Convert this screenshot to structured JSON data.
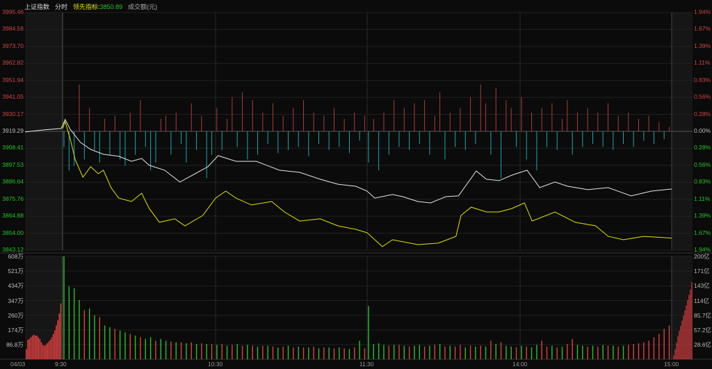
{
  "header": {
    "index_name": "上证指数",
    "mode": "分时",
    "indicator_label": "领先指标:",
    "indicator_value": "3850.89",
    "volume_label": "成交额(元)"
  },
  "icons": {
    "close": "close-icon",
    "expand": "expand-arrows-icon"
  },
  "colors": {
    "up": "#e04040",
    "down": "#27c427",
    "breadth_down": "#1aa8b0",
    "index_line": "#e8e8e8",
    "indicator_line": "#e6e600",
    "background": "#0b0b0b"
  },
  "chart_data": [
    {
      "type": "line",
      "panel": "price",
      "prev_close": 3919.29,
      "ylim": [
        3843.12,
        3995.46
      ],
      "left_ticks": [
        "3995.46",
        "3984.58",
        "3973.70",
        "3962.82",
        "3951.94",
        "3941.05",
        "3930.17",
        "3919.29",
        "3908.41",
        "3897.53",
        "3886.64",
        "3875.76",
        "3864.88",
        "3854.00",
        "3843.12"
      ],
      "right_ticks": [
        "1.94%",
        "1.67%",
        "1.39%",
        "1.11%",
        "0.83%",
        "0.56%",
        "0.28%",
        "0.00%",
        "0.28%",
        "0.56%",
        "0.83%",
        "1.11%",
        "1.39%",
        "1.67%",
        "1.94%"
      ],
      "x_ticks": [
        "04/03",
        "9:30",
        "10:30",
        "11:30",
        "14:00",
        "15:00"
      ],
      "series": [
        {
          "key": "index",
          "color": "#e8e8e8",
          "points": [
            [
              "09:15",
              3918.9
            ],
            [
              "09:20",
              3920.2
            ],
            [
              "09:25",
              3921.1
            ],
            [
              "09:31",
              3926.9
            ],
            [
              "09:33",
              3920.6
            ],
            [
              "09:37",
              3912.2
            ],
            [
              "09:41",
              3907.7
            ],
            [
              "09:46",
              3904.6
            ],
            [
              "09:52",
              3903.3
            ],
            [
              "09:57",
              3900.1
            ],
            [
              "10:01",
              3901.9
            ],
            [
              "10:04",
              3897.5
            ],
            [
              "10:10",
              3894.4
            ],
            [
              "10:16",
              3886.8
            ],
            [
              "10:22",
              3892.1
            ],
            [
              "10:27",
              3896.6
            ],
            [
              "10:31",
              3903.7
            ],
            [
              "10:38",
              3900.1
            ],
            [
              "10:46",
              3900.1
            ],
            [
              "10:55",
              3894.4
            ],
            [
              "11:03",
              3893.0
            ],
            [
              "11:11",
              3888.6
            ],
            [
              "11:18",
              3885.4
            ],
            [
              "11:25",
              3884.1
            ],
            [
              "13:00",
              3881.0
            ],
            [
              "13:03",
              3876.5
            ],
            [
              "13:10",
              3878.8
            ],
            [
              "13:14",
              3877.4
            ],
            [
              "13:20",
              3874.3
            ],
            [
              "13:25",
              3873.4
            ],
            [
              "13:31",
              3877.4
            ],
            [
              "13:36",
              3877.9
            ],
            [
              "13:43",
              3893.9
            ],
            [
              "13:47",
              3888.6
            ],
            [
              "13:52",
              3887.7
            ],
            [
              "13:57",
              3891.2
            ],
            [
              "14:03",
              3894.4
            ],
            [
              "14:08",
              3883.2
            ],
            [
              "14:14",
              3886.8
            ],
            [
              "14:19",
              3884.1
            ],
            [
              "14:27",
              3881.9
            ],
            [
              "14:35",
              3883.2
            ],
            [
              "14:44",
              3877.9
            ],
            [
              "14:52",
              3881.0
            ],
            [
              "15:00",
              3882.3
            ]
          ]
        },
        {
          "key": "indicator",
          "color": "#e6e600",
          "points": [
            [
              "09:30",
              3921.1
            ],
            [
              "09:31",
              3925.5
            ],
            [
              "09:33",
              3914.4
            ],
            [
              "09:35",
              3901.0
            ],
            [
              "09:38",
              3889.9
            ],
            [
              "09:41",
              3896.6
            ],
            [
              "09:44",
              3892.1
            ],
            [
              "09:46",
              3894.4
            ],
            [
              "09:49",
              3883.2
            ],
            [
              "09:52",
              3876.5
            ],
            [
              "09:57",
              3874.3
            ],
            [
              "10:01",
              3879.6
            ],
            [
              "10:04",
              3869.8
            ],
            [
              "10:08",
              3861.0
            ],
            [
              "10:14",
              3863.2
            ],
            [
              "10:18",
              3858.7
            ],
            [
              "10:25",
              3865.4
            ],
            [
              "10:30",
              3876.5
            ],
            [
              "10:34",
              3881.0
            ],
            [
              "10:38",
              3876.5
            ],
            [
              "10:44",
              3872.1
            ],
            [
              "10:52",
              3874.3
            ],
            [
              "10:57",
              3867.6
            ],
            [
              "11:03",
              3861.8
            ],
            [
              "11:11",
              3863.2
            ],
            [
              "11:18",
              3858.7
            ],
            [
              "11:25",
              3856.5
            ],
            [
              "13:00",
              3854.3
            ],
            [
              "13:06",
              3845.4
            ],
            [
              "13:10",
              3849.8
            ],
            [
              "13:20",
              3846.7
            ],
            [
              "13:28",
              3847.6
            ],
            [
              "13:35",
              3852.0
            ],
            [
              "13:37",
              3865.4
            ],
            [
              "13:41",
              3870.7
            ],
            [
              "13:47",
              3867.6
            ],
            [
              "13:52",
              3867.6
            ],
            [
              "13:57",
              3869.8
            ],
            [
              "14:02",
              3873.4
            ],
            [
              "14:05",
              3861.8
            ],
            [
              "14:14",
              3867.6
            ],
            [
              "14:22",
              3861.0
            ],
            [
              "14:30",
              3858.7
            ],
            [
              "14:35",
              3852.0
            ],
            [
              "14:41",
              3849.8
            ],
            [
              "14:49",
              3852.0
            ],
            [
              "15:00",
              3850.89
            ]
          ]
        }
      ],
      "breadth_bars_every_2min": {
        "morning": [
          -10,
          -25,
          -22,
          30,
          -18,
          15,
          -12,
          -20,
          8,
          -15,
          10,
          -18,
          -22,
          12,
          -15,
          20,
          -10,
          -25,
          -20,
          8,
          10,
          -15,
          12,
          -8,
          -20,
          18,
          -12,
          10,
          -30,
          -15,
          15,
          -12,
          8,
          22,
          -10,
          25,
          -18,
          20,
          -15,
          12,
          -8,
          18,
          -14,
          10,
          -12,
          15,
          -10,
          20,
          -16,
          12,
          -8,
          10,
          -12,
          15,
          -10,
          8,
          -14,
          12,
          -6,
          10
        ],
        "afternoon": [
          -20,
          8,
          -25,
          12,
          -15,
          20,
          -10,
          15,
          -12,
          18,
          -8,
          20,
          -15,
          10,
          25,
          -18,
          12,
          -10,
          15,
          -12,
          22,
          -8,
          30,
          18,
          -15,
          28,
          -30,
          20,
          15,
          -10,
          22,
          -18,
          12,
          -25,
          15,
          -10,
          18,
          -12,
          8,
          20,
          -15,
          12,
          -10,
          15,
          -8,
          12,
          -10,
          18,
          -12,
          10,
          -8,
          12,
          -10,
          8,
          -6,
          10,
          -8,
          6,
          -5,
          3
        ]
      }
    },
    {
      "type": "bar",
      "panel": "volume",
      "unit_left": "万",
      "unit_right": "亿",
      "ylim": [
        0,
        608
      ],
      "left_ticks": [
        "608万",
        "521万",
        "434万",
        "347万",
        "260万",
        "174万",
        "86.8万"
      ],
      "right_ticks": [
        "200亿",
        "171亿",
        "143亿",
        "114亿",
        "85.7亿",
        "57.2亿",
        "28.6亿"
      ],
      "premarket": [
        60,
        115,
        120,
        130,
        140,
        145,
        140,
        140,
        130,
        120,
        100,
        85,
        80,
        85,
        95,
        105,
        115,
        130,
        150,
        170,
        200,
        230,
        270,
        330
      ],
      "morning_every_2min": [
        -608,
        -430,
        -420,
        -350,
        290,
        -300,
        -260,
        250,
        -200,
        -190,
        180,
        -170,
        -160,
        150,
        -140,
        130,
        -120,
        -130,
        110,
        -120,
        -110,
        105,
        -100,
        100,
        -95,
        100,
        -90,
        95,
        -90,
        90,
        -85,
        90,
        -80,
        85,
        -90,
        80,
        -85,
        80,
        -75,
        80,
        -80,
        75,
        -70,
        75,
        -80,
        70,
        -75,
        70,
        -70,
        75,
        -65,
        70,
        -70,
        65,
        -70,
        65,
        -60,
        70,
        -110,
        65
      ],
      "afternoon_every_2min": [
        -315,
        -90,
        -95,
        -85,
        80,
        -85,
        85,
        -80,
        75,
        -80,
        -85,
        75,
        -80,
        85,
        -90,
        75,
        -80,
        75,
        85,
        -70,
        80,
        -75,
        80,
        -75,
        110,
        -90,
        100,
        -80,
        -75,
        70,
        -80,
        75,
        -70,
        -85,
        110,
        75,
        -80,
        70,
        -75,
        90,
        120,
        -85,
        -80,
        75,
        -80,
        75,
        -85,
        80,
        -80,
        75,
        -80,
        85,
        90,
        95,
        100,
        110,
        130,
        150,
        180,
        200
      ],
      "closing_amount_yi": [
        8,
        20,
        32,
        45,
        55,
        65,
        75,
        85,
        95,
        105,
        115,
        125,
        135,
        150
      ]
    }
  ]
}
